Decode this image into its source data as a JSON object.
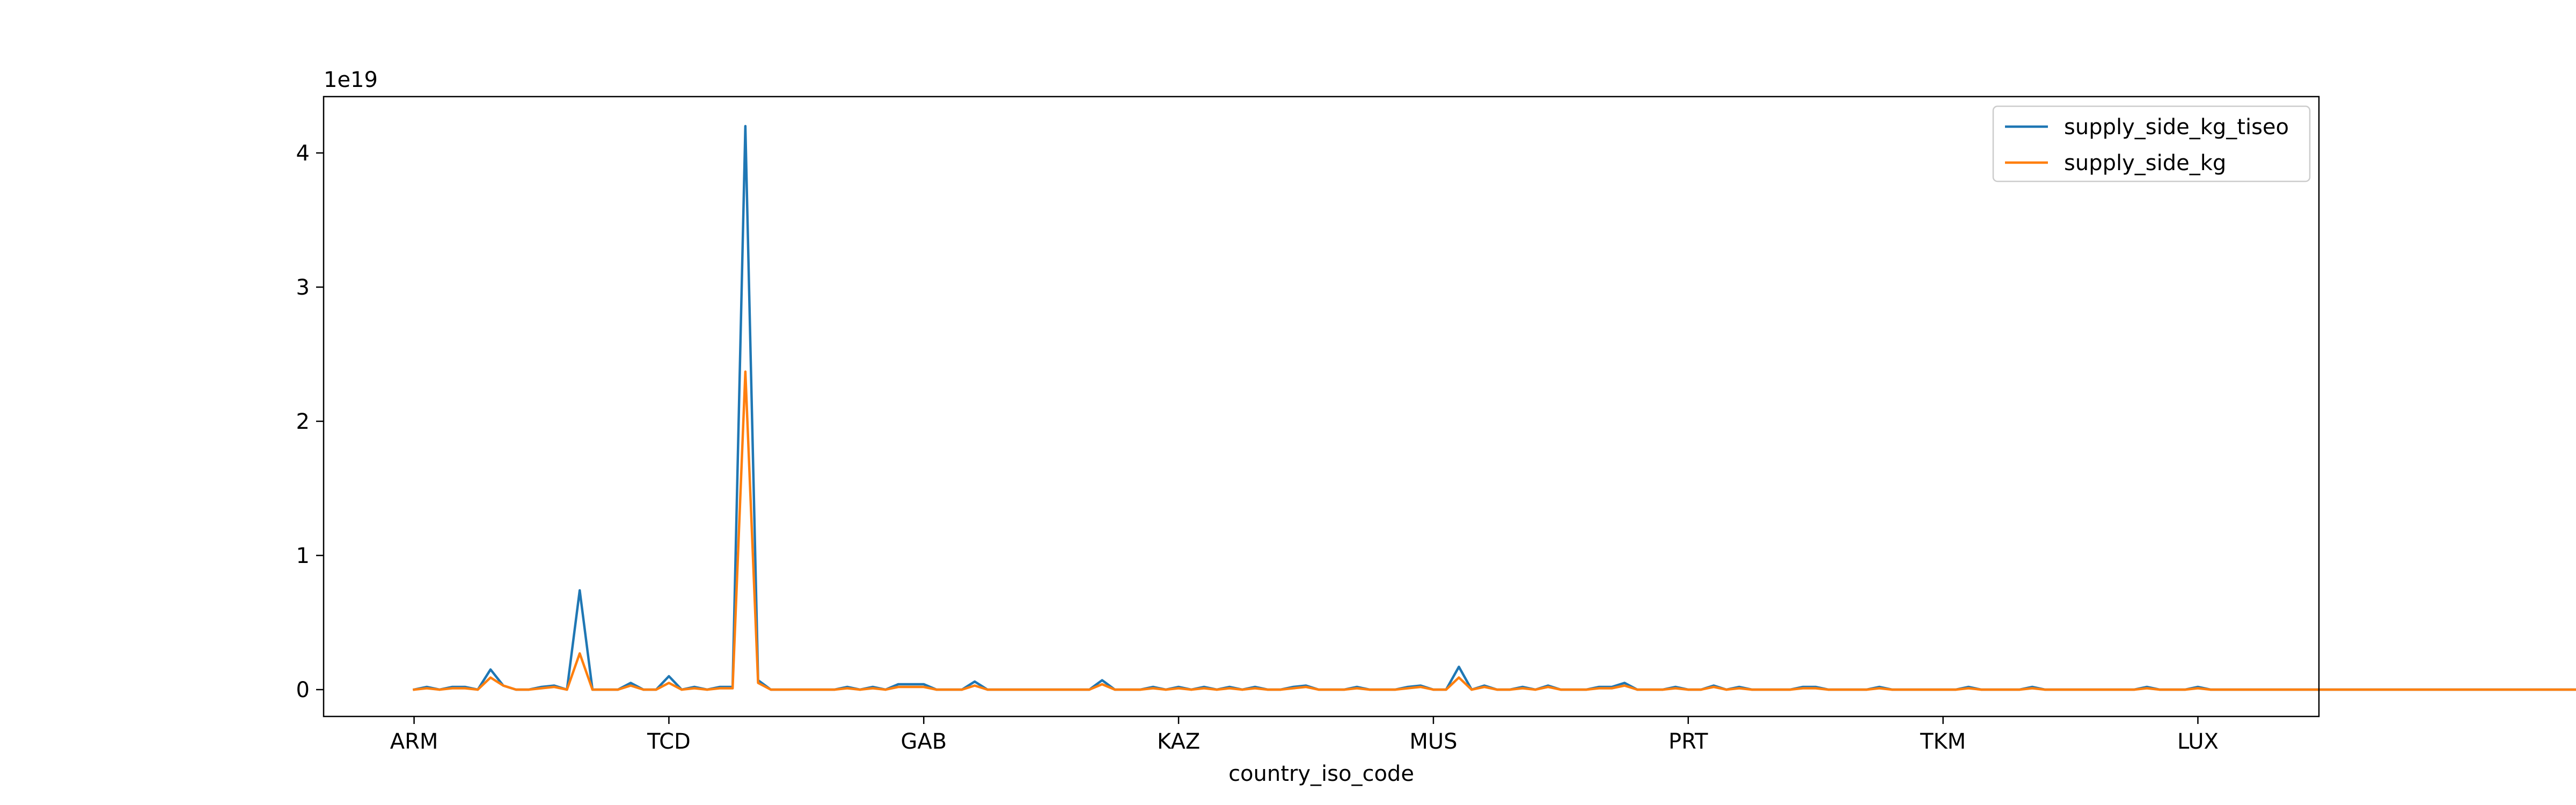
{
  "chart_data": {
    "type": "line",
    "xlabel": "country_iso_code",
    "ylabel": "",
    "y_multiplier_label": "1e19",
    "ylim": [
      -0.2,
      4.42
    ],
    "yticks": [
      0,
      1,
      2,
      3,
      4
    ],
    "y_tick_labels": [
      "0",
      "1",
      "2",
      "3",
      "4"
    ],
    "x_tick_labels": [
      "ARM",
      "TCD",
      "GAB",
      "KAZ",
      "MUS",
      "PRT",
      "TKM",
      "LUX"
    ],
    "x_tick_positions": [
      0,
      20,
      40,
      60,
      80,
      100,
      120,
      140
    ],
    "xlim": [
      -7.1,
      149.5
    ],
    "grid": false,
    "legend_position": "top-right",
    "colors": {
      "supply_side_kg_tiseo": "#1f77b4",
      "supply_side_kg": "#ff7f0e"
    },
    "series": [
      {
        "name": "supply_side_kg_tiseo",
        "values": [
          0.0,
          0.02,
          0.0,
          0.02,
          0.02,
          0.0,
          0.15,
          0.03,
          0.0,
          0.0,
          0.02,
          0.03,
          0.0,
          0.74,
          0.0,
          0.0,
          0.0,
          0.05,
          0.0,
          0.0,
          0.1,
          0.0,
          0.02,
          0.0,
          0.02,
          0.02,
          4.2,
          0.07,
          0.0,
          0.0,
          0.0,
          0.0,
          0.0,
          0.0,
          0.02,
          0.0,
          0.02,
          0.0,
          0.04,
          0.04,
          0.04,
          0.0,
          0.0,
          0.0,
          0.06,
          0.0,
          0.0,
          0.0,
          0.0,
          0.0,
          0.0,
          0.0,
          0.0,
          0.0,
          0.07,
          0.0,
          0.0,
          0.0,
          0.02,
          0.0,
          0.02,
          0.0,
          0.02,
          0.0,
          0.02,
          0.0,
          0.02,
          0.0,
          0.0,
          0.02,
          0.03,
          0.0,
          0.0,
          0.0,
          0.02,
          0.0,
          0.0,
          0.0,
          0.02,
          0.03,
          0.0,
          0.0,
          0.17,
          0.0,
          0.03,
          0.0,
          0.0,
          0.02,
          0.0,
          0.03,
          0.0,
          0.0,
          0.0,
          0.02,
          0.02,
          0.05,
          0.0,
          0.0,
          0.0,
          0.02,
          0.0,
          0.0,
          0.03,
          0.0,
          0.02,
          0.0,
          0.0,
          0.0,
          0.0,
          0.02,
          0.02,
          0.0,
          0.0,
          0.0,
          0.0,
          0.02,
          0.0,
          0.0,
          0.0,
          0.0,
          0.0,
          0.0,
          0.02,
          0.0,
          0.0,
          0.0,
          0.0,
          0.02,
          0.0,
          0.0,
          0.0,
          0.0,
          0.0,
          0.0,
          0.0,
          0.0,
          0.02,
          0.0,
          0.0,
          0.0,
          0.02,
          0.0,
          0.0,
          0.0,
          0.0,
          0.0,
          0.0,
          0.0,
          0.0,
          0.0,
          0.0,
          0.0,
          0.0,
          0.0,
          0.0,
          0.0,
          0.0,
          0.0,
          0.0,
          0.0,
          0.0,
          0.0,
          0.0,
          0.0,
          0.0,
          0.0,
          0.0,
          0.0,
          0.0,
          0.0,
          0.0,
          0.0,
          0.0
        ]
      },
      {
        "name": "supply_side_kg",
        "values": [
          0.0,
          0.01,
          0.0,
          0.01,
          0.01,
          0.0,
          0.09,
          0.03,
          0.0,
          0.0,
          0.01,
          0.02,
          0.0,
          0.27,
          0.0,
          0.0,
          0.0,
          0.03,
          0.0,
          0.0,
          0.05,
          0.0,
          0.01,
          0.0,
          0.01,
          0.01,
          2.37,
          0.05,
          0.0,
          0.0,
          0.0,
          0.0,
          0.0,
          0.0,
          0.01,
          0.0,
          0.01,
          0.0,
          0.02,
          0.02,
          0.02,
          0.0,
          0.0,
          0.0,
          0.03,
          0.0,
          0.0,
          0.0,
          0.0,
          0.0,
          0.0,
          0.0,
          0.0,
          0.0,
          0.04,
          0.0,
          0.0,
          0.0,
          0.01,
          0.0,
          0.01,
          0.0,
          0.01,
          0.0,
          0.01,
          0.0,
          0.01,
          0.0,
          0.0,
          0.01,
          0.02,
          0.0,
          0.0,
          0.0,
          0.01,
          0.0,
          0.0,
          0.0,
          0.01,
          0.02,
          0.0,
          0.0,
          0.09,
          0.0,
          0.02,
          0.0,
          0.0,
          0.01,
          0.0,
          0.02,
          0.0,
          0.0,
          0.0,
          0.01,
          0.01,
          0.03,
          0.0,
          0.0,
          0.0,
          0.01,
          0.0,
          0.0,
          0.02,
          0.0,
          0.01,
          0.0,
          0.0,
          0.0,
          0.0,
          0.01,
          0.01,
          0.0,
          0.0,
          0.0,
          0.0,
          0.01,
          0.0,
          0.0,
          0.0,
          0.0,
          0.0,
          0.0,
          0.01,
          0.0,
          0.0,
          0.0,
          0.0,
          0.01,
          0.0,
          0.0,
          0.0,
          0.0,
          0.0,
          0.0,
          0.0,
          0.0,
          0.01,
          0.0,
          0.0,
          0.0,
          0.01,
          0.0,
          0.0,
          0.0,
          0.0,
          0.0,
          0.0,
          0.0,
          0.0,
          0.0,
          0.0,
          0.0,
          0.0,
          0.0,
          0.0,
          0.0,
          0.0,
          0.0,
          0.0,
          0.0,
          0.0,
          0.0,
          0.0,
          0.0,
          0.0,
          0.0,
          0.0,
          0.0,
          0.0,
          0.0,
          0.0,
          0.0,
          0.0
        ]
      }
    ]
  }
}
